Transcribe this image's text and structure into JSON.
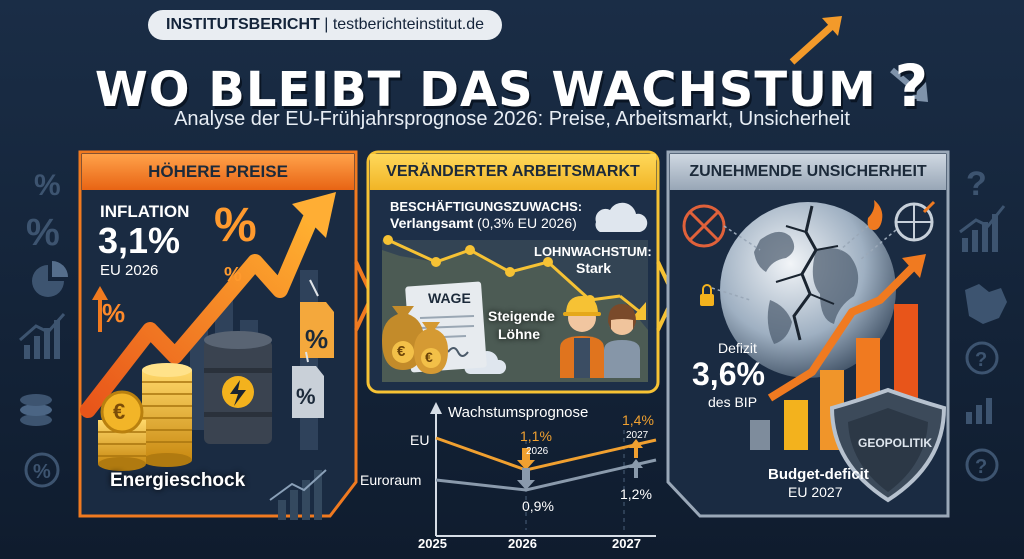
{
  "header": {
    "badge_strong": "INSTITUTSBERICHT",
    "badge_rest": " | testberichteinstitut.de",
    "title": "WO BLEIBT DAS WACHSTUM",
    "title_mark": "?",
    "subtitle": "Analyse der EU-Frühjahrsprognose 2026: Preise, Arbeitsmarkt, Unsicherheit"
  },
  "panel_prices": {
    "heading": "HÖHERE PREISE",
    "inflation_label": "INFLATION",
    "inflation_value": "3,1%",
    "inflation_scope": "EU 2026",
    "percent_glyph": "%",
    "caption": "Energieschock"
  },
  "panel_labour": {
    "heading": "VERÄNDERTER ARBEITSMARKT",
    "employment_label": "BESCHÄFTIGUNGSZUWACHS:",
    "employment_value": "Verlangsamt",
    "employment_note": "(0,3% EU 2026)",
    "wage_label": "LOHNWACHSTUM:",
    "wage_value": "Stark",
    "wage_doc": "WAGE",
    "rising_wages_1": "Steigende",
    "rising_wages_2": "Löhne",
    "coin_symbol": "€"
  },
  "growth_chart": {
    "title": "Wachstumsprognose",
    "series": [
      {
        "name": "EU",
        "values": [
          null,
          1.1,
          1.4
        ]
      },
      {
        "name": "Euroraum",
        "values": [
          null,
          0.9,
          1.2
        ]
      }
    ],
    "categories": [
      "2025",
      "2026",
      "2027"
    ],
    "labels": {
      "eu_2026": "1,1%",
      "eu_2026_year": "2026",
      "eu_2027": "1,4%",
      "eu_2027_year": "2027",
      "ea_2026": "0,9%",
      "ea_2027": "1,2%"
    },
    "colors": {
      "eu": "#f0a030",
      "euroraum": "#8a9aac"
    }
  },
  "panel_uncertainty": {
    "heading": "ZUNEHMENDE UNSICHERHEIT",
    "deficit_label": "Defizit",
    "deficit_value": "3,6%",
    "deficit_unit": "des BIP",
    "caption_1": "Budget-deficit",
    "caption_2": "EU 2027",
    "shield": "GEOPOLITIK"
  },
  "colors": {
    "background": "#14243a",
    "prices_accent": "#f07a20",
    "labour_accent": "#f6c234",
    "uncertainty_accent": "#9aa8b8"
  }
}
